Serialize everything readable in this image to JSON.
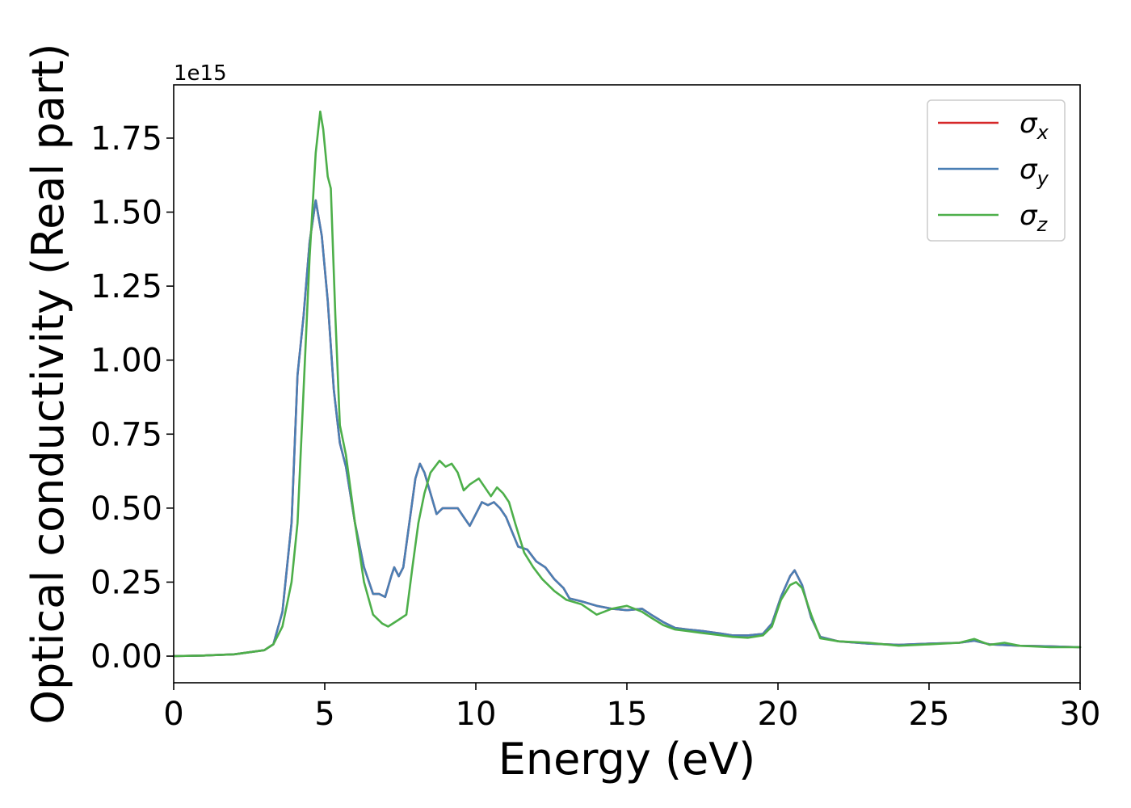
{
  "chart_data": {
    "type": "line",
    "title": "",
    "xlabel": "Energy (eV)",
    "ylabel": "Optical conductivity (Real part)",
    "y_offset_label": "1e15",
    "xlim": [
      0,
      30
    ],
    "ylim": [
      -0.09,
      1.93
    ],
    "x_ticks": [
      0,
      5,
      10,
      15,
      20,
      25,
      30
    ],
    "x_tick_labels": [
      "0",
      "5",
      "10",
      "15",
      "20",
      "25",
      "30"
    ],
    "y_ticks": [
      0.0,
      0.25,
      0.5,
      0.75,
      1.0,
      1.25,
      1.5,
      1.75
    ],
    "y_tick_labels": [
      "0.00",
      "0.25",
      "0.50",
      "0.75",
      "1.00",
      "1.25",
      "1.50",
      "1.75"
    ],
    "grid": false,
    "legend_position": "top-right",
    "series": [
      {
        "name": "σ",
        "subscript": "x",
        "color": "#d62728",
        "points": [
          [
            0,
            0
          ],
          [
            1,
            0.002
          ],
          [
            2,
            0.006
          ],
          [
            3,
            0.02
          ],
          [
            3.3,
            0.04
          ],
          [
            3.6,
            0.15
          ],
          [
            3.9,
            0.45
          ],
          [
            4.1,
            0.95
          ],
          [
            4.3,
            1.15
          ],
          [
            4.5,
            1.4
          ],
          [
            4.7,
            1.54
          ],
          [
            4.9,
            1.42
          ],
          [
            5.1,
            1.2
          ],
          [
            5.3,
            0.9
          ],
          [
            5.5,
            0.72
          ],
          [
            5.7,
            0.64
          ],
          [
            6.0,
            0.45
          ],
          [
            6.3,
            0.3
          ],
          [
            6.6,
            0.21
          ],
          [
            6.8,
            0.21
          ],
          [
            7.0,
            0.2
          ],
          [
            7.2,
            0.27
          ],
          [
            7.3,
            0.3
          ],
          [
            7.45,
            0.27
          ],
          [
            7.6,
            0.3
          ],
          [
            7.8,
            0.45
          ],
          [
            8.0,
            0.6
          ],
          [
            8.15,
            0.65
          ],
          [
            8.3,
            0.62
          ],
          [
            8.5,
            0.55
          ],
          [
            8.7,
            0.48
          ],
          [
            8.9,
            0.5
          ],
          [
            9.1,
            0.5
          ],
          [
            9.4,
            0.5
          ],
          [
            9.6,
            0.47
          ],
          [
            9.8,
            0.44
          ],
          [
            10.0,
            0.48
          ],
          [
            10.2,
            0.52
          ],
          [
            10.4,
            0.51
          ],
          [
            10.6,
            0.52
          ],
          [
            10.8,
            0.5
          ],
          [
            11.0,
            0.47
          ],
          [
            11.2,
            0.42
          ],
          [
            11.4,
            0.37
          ],
          [
            11.7,
            0.36
          ],
          [
            12.0,
            0.32
          ],
          [
            12.3,
            0.3
          ],
          [
            12.6,
            0.26
          ],
          [
            12.9,
            0.23
          ],
          [
            13.1,
            0.195
          ],
          [
            13.5,
            0.185
          ],
          [
            14.0,
            0.17
          ],
          [
            14.5,
            0.16
          ],
          [
            15.0,
            0.155
          ],
          [
            15.5,
            0.16
          ],
          [
            15.8,
            0.14
          ],
          [
            16.2,
            0.115
          ],
          [
            16.6,
            0.095
          ],
          [
            17.0,
            0.09
          ],
          [
            17.5,
            0.085
          ],
          [
            18.0,
            0.078
          ],
          [
            18.5,
            0.07
          ],
          [
            19.0,
            0.07
          ],
          [
            19.5,
            0.075
          ],
          [
            19.8,
            0.11
          ],
          [
            20.1,
            0.2
          ],
          [
            20.4,
            0.27
          ],
          [
            20.55,
            0.29
          ],
          [
            20.8,
            0.24
          ],
          [
            21.1,
            0.13
          ],
          [
            21.4,
            0.065
          ],
          [
            22.0,
            0.05
          ],
          [
            23.0,
            0.042
          ],
          [
            24.0,
            0.038
          ],
          [
            25.0,
            0.042
          ],
          [
            26.0,
            0.045
          ],
          [
            26.5,
            0.052
          ],
          [
            27.0,
            0.04
          ],
          [
            28.0,
            0.035
          ],
          [
            29.0,
            0.033
          ],
          [
            30.0,
            0.03
          ]
        ]
      },
      {
        "name": "σ",
        "subscript": "y",
        "color": "#4a7fb4",
        "points": [
          [
            0,
            0
          ],
          [
            1,
            0.002
          ],
          [
            2,
            0.006
          ],
          [
            3,
            0.02
          ],
          [
            3.3,
            0.04
          ],
          [
            3.6,
            0.15
          ],
          [
            3.9,
            0.45
          ],
          [
            4.1,
            0.95
          ],
          [
            4.3,
            1.15
          ],
          [
            4.5,
            1.4
          ],
          [
            4.7,
            1.54
          ],
          [
            4.9,
            1.42
          ],
          [
            5.1,
            1.2
          ],
          [
            5.3,
            0.9
          ],
          [
            5.5,
            0.72
          ],
          [
            5.7,
            0.64
          ],
          [
            6.0,
            0.45
          ],
          [
            6.3,
            0.3
          ],
          [
            6.6,
            0.21
          ],
          [
            6.8,
            0.21
          ],
          [
            7.0,
            0.2
          ],
          [
            7.2,
            0.27
          ],
          [
            7.3,
            0.3
          ],
          [
            7.45,
            0.27
          ],
          [
            7.6,
            0.3
          ],
          [
            7.8,
            0.45
          ],
          [
            8.0,
            0.6
          ],
          [
            8.15,
            0.65
          ],
          [
            8.3,
            0.62
          ],
          [
            8.5,
            0.55
          ],
          [
            8.7,
            0.48
          ],
          [
            8.9,
            0.5
          ],
          [
            9.1,
            0.5
          ],
          [
            9.4,
            0.5
          ],
          [
            9.6,
            0.47
          ],
          [
            9.8,
            0.44
          ],
          [
            10.0,
            0.48
          ],
          [
            10.2,
            0.52
          ],
          [
            10.4,
            0.51
          ],
          [
            10.6,
            0.52
          ],
          [
            10.8,
            0.5
          ],
          [
            11.0,
            0.47
          ],
          [
            11.2,
            0.42
          ],
          [
            11.4,
            0.37
          ],
          [
            11.7,
            0.36
          ],
          [
            12.0,
            0.32
          ],
          [
            12.3,
            0.3
          ],
          [
            12.6,
            0.26
          ],
          [
            12.9,
            0.23
          ],
          [
            13.1,
            0.195
          ],
          [
            13.5,
            0.185
          ],
          [
            14.0,
            0.17
          ],
          [
            14.5,
            0.16
          ],
          [
            15.0,
            0.155
          ],
          [
            15.5,
            0.16
          ],
          [
            15.8,
            0.14
          ],
          [
            16.2,
            0.115
          ],
          [
            16.6,
            0.095
          ],
          [
            17.0,
            0.09
          ],
          [
            17.5,
            0.085
          ],
          [
            18.0,
            0.078
          ],
          [
            18.5,
            0.07
          ],
          [
            19.0,
            0.07
          ],
          [
            19.5,
            0.075
          ],
          [
            19.8,
            0.11
          ],
          [
            20.1,
            0.2
          ],
          [
            20.4,
            0.27
          ],
          [
            20.55,
            0.29
          ],
          [
            20.8,
            0.24
          ],
          [
            21.1,
            0.13
          ],
          [
            21.4,
            0.065
          ],
          [
            22.0,
            0.05
          ],
          [
            23.0,
            0.042
          ],
          [
            24.0,
            0.038
          ],
          [
            25.0,
            0.042
          ],
          [
            26.0,
            0.045
          ],
          [
            26.5,
            0.052
          ],
          [
            27.0,
            0.04
          ],
          [
            28.0,
            0.035
          ],
          [
            29.0,
            0.033
          ],
          [
            30.0,
            0.03
          ]
        ]
      },
      {
        "name": "σ",
        "subscript": "z",
        "color": "#4daf4a",
        "points": [
          [
            0,
            0
          ],
          [
            1,
            0.002
          ],
          [
            2,
            0.006
          ],
          [
            3,
            0.02
          ],
          [
            3.3,
            0.04
          ],
          [
            3.6,
            0.1
          ],
          [
            3.9,
            0.25
          ],
          [
            4.1,
            0.45
          ],
          [
            4.3,
            0.9
          ],
          [
            4.5,
            1.35
          ],
          [
            4.7,
            1.7
          ],
          [
            4.85,
            1.84
          ],
          [
            4.95,
            1.78
          ],
          [
            5.1,
            1.62
          ],
          [
            5.2,
            1.58
          ],
          [
            5.35,
            1.15
          ],
          [
            5.5,
            0.78
          ],
          [
            5.7,
            0.68
          ],
          [
            6.0,
            0.45
          ],
          [
            6.3,
            0.25
          ],
          [
            6.6,
            0.14
          ],
          [
            6.9,
            0.11
          ],
          [
            7.1,
            0.1
          ],
          [
            7.4,
            0.12
          ],
          [
            7.7,
            0.14
          ],
          [
            7.9,
            0.3
          ],
          [
            8.1,
            0.45
          ],
          [
            8.3,
            0.55
          ],
          [
            8.5,
            0.62
          ],
          [
            8.8,
            0.66
          ],
          [
            9.0,
            0.64
          ],
          [
            9.2,
            0.65
          ],
          [
            9.4,
            0.62
          ],
          [
            9.6,
            0.56
          ],
          [
            9.8,
            0.58
          ],
          [
            10.1,
            0.6
          ],
          [
            10.3,
            0.57
          ],
          [
            10.5,
            0.54
          ],
          [
            10.7,
            0.57
          ],
          [
            10.9,
            0.55
          ],
          [
            11.1,
            0.52
          ],
          [
            11.3,
            0.45
          ],
          [
            11.6,
            0.35
          ],
          [
            11.9,
            0.3
          ],
          [
            12.2,
            0.26
          ],
          [
            12.6,
            0.22
          ],
          [
            13.0,
            0.19
          ],
          [
            13.5,
            0.175
          ],
          [
            14.0,
            0.14
          ],
          [
            14.5,
            0.16
          ],
          [
            15.0,
            0.17
          ],
          [
            15.5,
            0.15
          ],
          [
            15.8,
            0.13
          ],
          [
            16.2,
            0.105
          ],
          [
            16.6,
            0.09
          ],
          [
            17.0,
            0.085
          ],
          [
            17.5,
            0.078
          ],
          [
            18.0,
            0.072
          ],
          [
            18.5,
            0.065
          ],
          [
            19.0,
            0.062
          ],
          [
            19.5,
            0.07
          ],
          [
            19.8,
            0.1
          ],
          [
            20.1,
            0.19
          ],
          [
            20.4,
            0.24
          ],
          [
            20.6,
            0.25
          ],
          [
            20.8,
            0.23
          ],
          [
            21.1,
            0.14
          ],
          [
            21.4,
            0.06
          ],
          [
            22.0,
            0.05
          ],
          [
            23.0,
            0.045
          ],
          [
            24.0,
            0.035
          ],
          [
            25.0,
            0.04
          ],
          [
            26.0,
            0.045
          ],
          [
            26.5,
            0.058
          ],
          [
            27.0,
            0.038
          ],
          [
            27.5,
            0.045
          ],
          [
            28.0,
            0.035
          ],
          [
            29.0,
            0.03
          ],
          [
            30.0,
            0.03
          ]
        ]
      }
    ]
  }
}
